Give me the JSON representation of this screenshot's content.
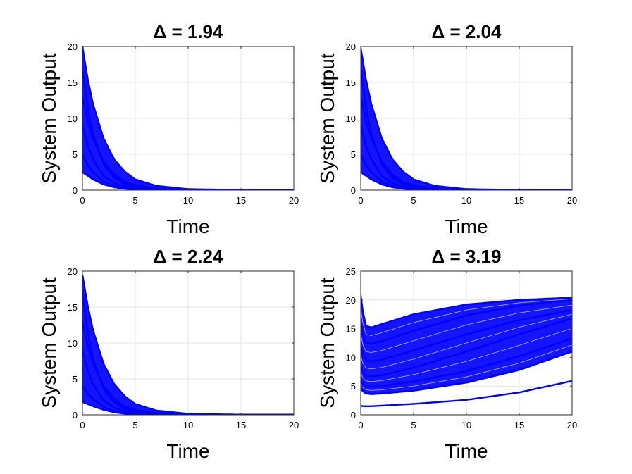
{
  "chart_data": [
    {
      "type": "line",
      "title": "Δ = 1.94",
      "xlabel": "Time",
      "ylabel": "System Output",
      "xlim": [
        0,
        20
      ],
      "ylim": [
        0,
        20
      ],
      "xticks": [
        0,
        5,
        10,
        15,
        20
      ],
      "yticks": [
        0,
        5,
        10,
        15,
        20
      ],
      "grid": true,
      "color": "#0000ff",
      "series_description": "many decaying trajectories",
      "series": [
        {
          "name": "trajectory-1",
          "x": [
            0,
            0.5,
            1,
            2,
            3,
            4,
            5,
            7,
            10,
            15,
            20
          ],
          "y": [
            20,
            15.5,
            12,
            7.2,
            4.3,
            2.6,
            1.5,
            0.6,
            0.15,
            0.02,
            0.0
          ]
        },
        {
          "name": "trajectory-2",
          "x": [
            0,
            0.5,
            1,
            2,
            3,
            4,
            5,
            7,
            10,
            15,
            20
          ],
          "y": [
            17,
            11.5,
            7.8,
            3.6,
            1.7,
            0.8,
            0.4,
            0.1,
            0.02,
            0.0,
            0.0
          ]
        },
        {
          "name": "trajectory-3",
          "x": [
            0,
            0.5,
            1,
            2,
            3,
            4,
            5,
            7,
            10,
            15,
            20
          ],
          "y": [
            13,
            9.6,
            7.2,
            4.0,
            2.2,
            1.2,
            0.7,
            0.2,
            0.05,
            0.0,
            0.0
          ]
        },
        {
          "name": "trajectory-4",
          "x": [
            0,
            0.5,
            1,
            2,
            3,
            4,
            5,
            7,
            10,
            15,
            20
          ],
          "y": [
            9,
            6.2,
            4.3,
            2.0,
            1.0,
            0.5,
            0.2,
            0.05,
            0.01,
            0.0,
            0.0
          ]
        },
        {
          "name": "trajectory-5",
          "x": [
            0,
            0.5,
            1,
            2,
            3,
            4,
            5,
            7,
            10,
            15,
            20
          ],
          "y": [
            5,
            3.5,
            2.5,
            1.2,
            0.6,
            0.3,
            0.15,
            0.04,
            0.01,
            0.0,
            0.0
          ]
        },
        {
          "name": "trajectory-6",
          "x": [
            0,
            0.5,
            1,
            2,
            3,
            4,
            5,
            7,
            10,
            15,
            20
          ],
          "y": [
            2.5,
            2.0,
            1.5,
            0.8,
            0.4,
            0.2,
            0.1,
            0.03,
            0.0,
            0.0,
            0.0
          ]
        }
      ]
    },
    {
      "type": "line",
      "title": "Δ = 2.04",
      "xlabel": "Time",
      "ylabel": "System Output",
      "xlim": [
        0,
        20
      ],
      "ylim": [
        0,
        20
      ],
      "xticks": [
        0,
        5,
        10,
        15,
        20
      ],
      "yticks": [
        0,
        5,
        10,
        15,
        20
      ],
      "grid": true,
      "color": "#0000ff",
      "series_description": "many decaying trajectories",
      "series": [
        {
          "name": "trajectory-1",
          "x": [
            0,
            0.5,
            1,
            2,
            3,
            4,
            5,
            7,
            10,
            15,
            20
          ],
          "y": [
            19.8,
            15.4,
            12,
            7.2,
            4.3,
            2.6,
            1.5,
            0.6,
            0.15,
            0.02,
            0.0
          ]
        },
        {
          "name": "trajectory-2",
          "x": [
            0,
            0.5,
            1,
            2,
            3,
            4,
            5,
            7,
            10,
            15,
            20
          ],
          "y": [
            17,
            11.5,
            7.8,
            3.6,
            1.7,
            0.8,
            0.4,
            0.1,
            0.02,
            0.0,
            0.0
          ]
        },
        {
          "name": "trajectory-3",
          "x": [
            0,
            0.5,
            1,
            2,
            3,
            4,
            5,
            7,
            10,
            15,
            20
          ],
          "y": [
            13,
            9.6,
            7.2,
            4.0,
            2.2,
            1.2,
            0.7,
            0.2,
            0.05,
            0.0,
            0.0
          ]
        },
        {
          "name": "trajectory-4",
          "x": [
            0,
            0.5,
            1,
            2,
            3,
            4,
            5,
            7,
            10,
            15,
            20
          ],
          "y": [
            9,
            6.2,
            4.3,
            2.0,
            1.0,
            0.5,
            0.2,
            0.05,
            0.01,
            0.0,
            0.0
          ]
        },
        {
          "name": "trajectory-5",
          "x": [
            0,
            0.5,
            1,
            2,
            3,
            4,
            5,
            7,
            10,
            15,
            20
          ],
          "y": [
            5,
            3.5,
            2.5,
            1.2,
            0.6,
            0.3,
            0.15,
            0.04,
            0.01,
            0.0,
            0.0
          ]
        },
        {
          "name": "trajectory-6",
          "x": [
            0,
            0.5,
            1,
            2,
            3,
            4,
            5,
            7,
            10,
            15,
            20
          ],
          "y": [
            2.5,
            2.0,
            1.5,
            0.8,
            0.4,
            0.2,
            0.1,
            0.03,
            0.0,
            0.0,
            0.0
          ]
        }
      ]
    },
    {
      "type": "line",
      "title": "Δ = 2.24",
      "xlabel": "Time",
      "ylabel": "System Output",
      "xlim": [
        0,
        20
      ],
      "ylim": [
        0,
        20
      ],
      "xticks": [
        0,
        5,
        10,
        15,
        20
      ],
      "yticks": [
        0,
        5,
        10,
        15,
        20
      ],
      "grid": true,
      "color": "#0000ff",
      "series_description": "many decaying trajectories",
      "series": [
        {
          "name": "trajectory-1",
          "x": [
            0,
            0.5,
            1,
            2,
            3,
            4,
            5,
            7,
            10,
            15,
            20
          ],
          "y": [
            19.5,
            15.2,
            11.8,
            7.1,
            4.3,
            2.6,
            1.5,
            0.6,
            0.15,
            0.02,
            0.0
          ]
        },
        {
          "name": "trajectory-2",
          "x": [
            0,
            0.5,
            1,
            2,
            3,
            4,
            5,
            7,
            10,
            15,
            20
          ],
          "y": [
            17,
            11.5,
            7.8,
            3.6,
            1.7,
            0.8,
            0.4,
            0.1,
            0.02,
            0.0,
            0.0
          ]
        },
        {
          "name": "trajectory-3",
          "x": [
            0,
            0.5,
            1,
            2,
            3,
            4,
            5,
            7,
            10,
            15,
            20
          ],
          "y": [
            13,
            9.6,
            7.2,
            4.0,
            2.2,
            1.2,
            0.7,
            0.2,
            0.05,
            0.0,
            0.0
          ]
        },
        {
          "name": "trajectory-4",
          "x": [
            0,
            0.5,
            1,
            2,
            3,
            4,
            5,
            7,
            10,
            15,
            20
          ],
          "y": [
            9,
            6.2,
            4.3,
            2.0,
            1.0,
            0.5,
            0.2,
            0.05,
            0.01,
            0.0,
            0.0
          ]
        },
        {
          "name": "trajectory-5",
          "x": [
            0,
            0.5,
            1,
            2,
            3,
            4,
            5,
            7,
            10,
            15,
            20
          ],
          "y": [
            4,
            3.0,
            2.2,
            1.1,
            0.5,
            0.25,
            0.12,
            0.03,
            0.01,
            0.0,
            0.0
          ]
        },
        {
          "name": "trajectory-6",
          "x": [
            0,
            0.5,
            1,
            2,
            3,
            4,
            5,
            7,
            10,
            15,
            20
          ],
          "y": [
            1.8,
            1.5,
            1.2,
            0.7,
            0.35,
            0.17,
            0.08,
            0.02,
            0.0,
            0.0,
            0.0
          ]
        }
      ]
    },
    {
      "type": "line",
      "title": "Δ = 3.19",
      "xlabel": "Time",
      "ylabel": "System Output",
      "xlim": [
        0,
        20
      ],
      "ylim": [
        0,
        25
      ],
      "xticks": [
        0,
        5,
        10,
        15,
        20
      ],
      "yticks": [
        0,
        5,
        10,
        15,
        20,
        25
      ],
      "grid": true,
      "color": "#0000ff",
      "series_description": "trajectories that dip then rise toward about 20",
      "series": [
        {
          "name": "trajectory-1",
          "x": [
            0,
            0.2,
            0.5,
            1,
            2,
            5,
            10,
            15,
            20
          ],
          "y": [
            20.8,
            18,
            15.5,
            15.2,
            15.8,
            17.5,
            19.2,
            20,
            20.4
          ]
        },
        {
          "name": "trajectory-2",
          "x": [
            0,
            0.2,
            0.5,
            1,
            2,
            5,
            10,
            15,
            20
          ],
          "y": [
            16,
            14,
            12.5,
            12.4,
            12.8,
            14.6,
            17.3,
            19,
            20
          ]
        },
        {
          "name": "trajectory-3",
          "x": [
            0,
            0.2,
            0.5,
            1,
            2,
            5,
            10,
            15,
            20
          ],
          "y": [
            12,
            10.5,
            9.5,
            9.3,
            9.6,
            11.2,
            14,
            16.5,
            18.2
          ]
        },
        {
          "name": "trajectory-4",
          "x": [
            0,
            0.2,
            0.5,
            1,
            2,
            5,
            10,
            15,
            20
          ],
          "y": [
            8.5,
            7.5,
            6.8,
            6.7,
            6.9,
            8.2,
            11,
            14,
            16.8
          ]
        },
        {
          "name": "trajectory-5",
          "x": [
            0,
            0.2,
            0.5,
            1,
            2,
            5,
            10,
            15,
            20
          ],
          "y": [
            6,
            5.4,
            5.0,
            4.9,
            5.0,
            5.8,
            7.6,
            10.2,
            13.3
          ]
        },
        {
          "name": "trajectory-6",
          "x": [
            0,
            0.2,
            0.5,
            1,
            2,
            5,
            10,
            15,
            20
          ],
          "y": [
            4.6,
            4.1,
            3.7,
            3.6,
            3.7,
            4.2,
            5.6,
            7.8,
            11
          ]
        },
        {
          "name": "trajectory-7",
          "x": [
            0,
            0.2,
            0.5,
            1,
            2,
            5,
            10,
            15,
            20
          ],
          "y": [
            1.6,
            1.5,
            1.5,
            1.5,
            1.6,
            1.9,
            2.6,
            3.9,
            5.9
          ]
        }
      ]
    }
  ]
}
